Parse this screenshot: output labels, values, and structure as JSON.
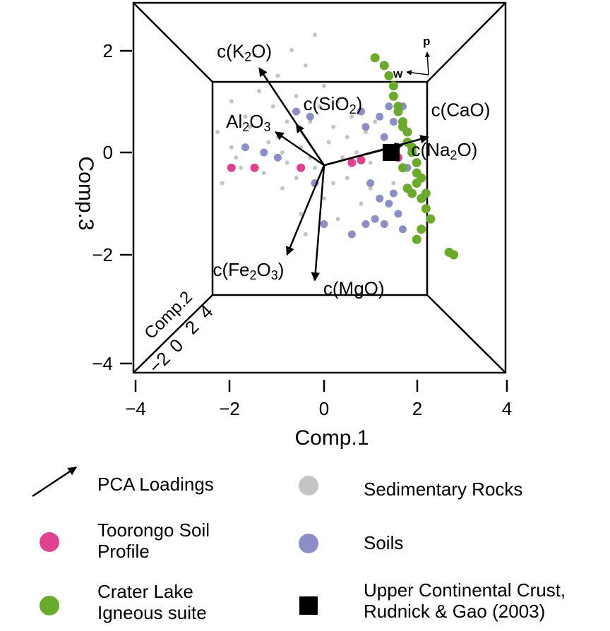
{
  "chart_data": {
    "type": "scatter",
    "projection": "3d-box",
    "axes": {
      "x": {
        "label": "Comp.1",
        "ticks": [
          -4,
          -2,
          0,
          2,
          4
        ],
        "lim": [
          -4,
          4
        ]
      },
      "y": {
        "label": "Comp.3",
        "ticks": [
          -4,
          -2,
          0,
          2
        ],
        "lim": [
          -4.1,
          2.7
        ]
      },
      "z": {
        "label": "Comp.2",
        "ticks": [
          -2,
          0,
          2,
          4
        ]
      }
    },
    "loadings": [
      {
        "label": "c(K",
        "sub": "2",
        "label_end": "O)",
        "x": -1.4,
        "y": 1.65
      },
      {
        "label": "c(SiO",
        "sub": "2",
        "label_end": ")",
        "x": -0.6,
        "y": 0.55
      },
      {
        "label": "Al",
        "sub": "2",
        "label_end": "O",
        "sub2": "3",
        "x": -1.05,
        "y": 0.4
      },
      {
        "label": "c(CaO)",
        "x": 2.25,
        "y": 0.3
      },
      {
        "label": "c(Na",
        "sub": "2",
        "label_end": "O)",
        "x": 1.7,
        "y": 0.15
      },
      {
        "label": "c(Fe",
        "sub": "2",
        "label_end": "O",
        "sub2": "3",
        "label_end2": ")",
        "x": -0.8,
        "y": -2.0
      },
      {
        "label": "c(MgO)",
        "x": -0.2,
        "y": -2.5
      }
    ],
    "series": [
      {
        "name": "Sedimentary Rocks",
        "color": "#c4c4c4",
        "points": [
          [
            -1.0,
            0.3
          ],
          [
            -0.8,
            -0.2
          ],
          [
            -0.5,
            0.1
          ],
          [
            -0.2,
            -0.3
          ],
          [
            0.1,
            0.2
          ],
          [
            0.4,
            -0.1
          ],
          [
            0.7,
            0.0
          ],
          [
            1.0,
            -0.2
          ],
          [
            -1.6,
            0.5
          ],
          [
            -1.3,
            -0.4
          ],
          [
            -0.3,
            0.6
          ],
          [
            0.2,
            -0.6
          ],
          [
            0.9,
            0.4
          ],
          [
            -0.6,
            1.1
          ],
          [
            -1.0,
            1.5
          ],
          [
            -1.4,
            1.2
          ],
          [
            -0.4,
            1.7
          ],
          [
            -0.1,
            0.9
          ],
          [
            -0.9,
            -0.7
          ],
          [
            0.5,
            -0.5
          ],
          [
            1.3,
            0.1
          ],
          [
            -2.0,
            0.1
          ],
          [
            -1.8,
            -0.3
          ],
          [
            0.0,
            -0.9
          ],
          [
            0.3,
            -1.3
          ],
          [
            -0.4,
            -1.6
          ],
          [
            0.8,
            -1.0
          ],
          [
            -2.3,
            0.4
          ],
          [
            -1.1,
            0.9
          ],
          [
            0.6,
            0.7
          ],
          [
            -0.7,
            2.0
          ],
          [
            -1.5,
            1.9
          ],
          [
            -2.0,
            1.0
          ],
          [
            -0.2,
            2.3
          ],
          [
            1.1,
            0.6
          ],
          [
            -0.9,
            0.0
          ],
          [
            -0.3,
            -0.1
          ],
          [
            0.2,
            0.5
          ],
          [
            -1.2,
            0.2
          ],
          [
            -0.6,
            -0.5
          ],
          [
            0.5,
            0.3
          ],
          [
            1.5,
            -0.6
          ],
          [
            -2.2,
            -0.6
          ],
          [
            -0.5,
            -1.2
          ],
          [
            0.0,
            1.3
          ],
          [
            -1.7,
            0.7
          ],
          [
            0.3,
            1.0
          ],
          [
            1.0,
            -0.7
          ],
          [
            -0.8,
            0.6
          ],
          [
            -1.9,
            -0.1
          ]
        ]
      },
      {
        "name": "Soils",
        "color": "#8c8ec8",
        "points": [
          [
            -1.7,
            0.1
          ],
          [
            -1.3,
            0.0
          ],
          [
            -1.0,
            -0.1
          ],
          [
            -0.3,
            0.7
          ],
          [
            -0.6,
            0.8
          ],
          [
            0.9,
            0.5
          ],
          [
            1.2,
            0.7
          ],
          [
            1.3,
            0.3
          ],
          [
            1.0,
            -0.6
          ],
          [
            1.5,
            -0.8
          ],
          [
            1.6,
            -1.2
          ],
          [
            1.3,
            -1.4
          ],
          [
            0.9,
            -1.4
          ],
          [
            1.1,
            -1.3
          ],
          [
            1.7,
            0.9
          ],
          [
            1.4,
            0.9
          ],
          [
            0.6,
            -1.6
          ],
          [
            0.8,
            0.8
          ],
          [
            1.5,
            0.6
          ],
          [
            1.8,
            -0.3
          ],
          [
            1.2,
            -0.9
          ],
          [
            1.4,
            -1.0
          ],
          [
            1.7,
            -1.5
          ],
          [
            0.0,
            -1.4
          ],
          [
            -0.2,
            -0.6
          ]
        ]
      },
      {
        "name": "Toorongo Soil Profile",
        "color": "#e0408f",
        "points": [
          [
            -2.0,
            -0.3
          ],
          [
            -1.5,
            -0.3
          ],
          [
            -0.5,
            -0.3
          ],
          [
            0.6,
            -0.2
          ],
          [
            0.8,
            -0.15
          ],
          [
            1.5,
            0.0
          ],
          [
            1.6,
            -0.1
          ]
        ]
      },
      {
        "name": "Crater Lake Igneous suite",
        "color": "#6bab2c",
        "points": [
          [
            1.1,
            1.85
          ],
          [
            1.3,
            1.7
          ],
          [
            1.4,
            1.5
          ],
          [
            1.5,
            1.3
          ],
          [
            1.5,
            1.1
          ],
          [
            1.6,
            0.9
          ],
          [
            1.6,
            0.8
          ],
          [
            1.7,
            0.6
          ],
          [
            1.7,
            0.5
          ],
          [
            1.8,
            0.4
          ],
          [
            1.8,
            0.2
          ],
          [
            1.9,
            0.1
          ],
          [
            1.9,
            0.0
          ],
          [
            2.0,
            -0.2
          ],
          [
            2.0,
            -0.4
          ],
          [
            2.1,
            -0.5
          ],
          [
            2.0,
            -0.6
          ],
          [
            1.9,
            -0.8
          ],
          [
            2.1,
            -0.9
          ],
          [
            2.2,
            -1.1
          ],
          [
            2.3,
            -1.3
          ],
          [
            2.1,
            -1.5
          ],
          [
            2.0,
            -1.7
          ],
          [
            2.7,
            -1.95
          ],
          [
            2.8,
            -2.0
          ],
          [
            1.7,
            -0.3
          ],
          [
            1.8,
            -0.7
          ],
          [
            2.2,
            -0.8
          ]
        ]
      },
      {
        "name": "Upper Continental Crust, Rudnick & Gao (2003)",
        "color": "#000000",
        "points": [
          [
            1.45,
            0.0
          ]
        ]
      }
    ],
    "corner_labels": {
      "p": "p",
      "w": "w"
    },
    "legend": [
      {
        "label": "PCA Loadings",
        "marker": "arrow"
      },
      {
        "label": "Sedimentary Rocks",
        "marker": "circle",
        "color": "#c4c4c4"
      },
      {
        "label": "Toorongo Soil Profile",
        "marker": "circle",
        "color": "#e0408f"
      },
      {
        "label": "Soils",
        "marker": "circle",
        "color": "#8c8ec8"
      },
      {
        "label": "Crater Lake Igneous suite",
        "marker": "circle",
        "color": "#6bab2c"
      },
      {
        "label": "Upper Continental Crust, Rudnick & Gao (2003)",
        "marker": "square",
        "color": "#000000"
      }
    ]
  }
}
